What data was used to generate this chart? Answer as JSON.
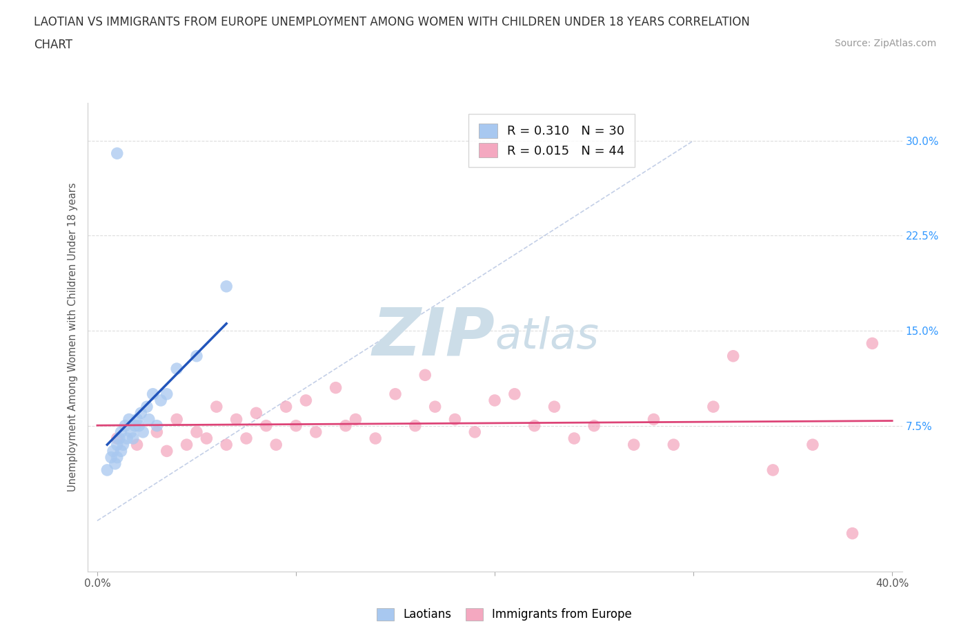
{
  "title_line1": "LAOTIAN VS IMMIGRANTS FROM EUROPE UNEMPLOYMENT AMONG WOMEN WITH CHILDREN UNDER 18 YEARS CORRELATION",
  "title_line2": "CHART",
  "source_text": "Source: ZipAtlas.com",
  "ylabel": "Unemployment Among Women with Children Under 18 years",
  "xlim": [
    -0.005,
    0.405
  ],
  "ylim": [
    -0.04,
    0.33
  ],
  "ytick_positions": [
    0.075,
    0.15,
    0.225,
    0.3
  ],
  "ytick_labels": [
    "7.5%",
    "15.0%",
    "22.5%",
    "30.0%"
  ],
  "r_laotian": 0.31,
  "n_laotian": 30,
  "r_europe": 0.015,
  "n_europe": 44,
  "laotian_color": "#a8c8f0",
  "europe_color": "#f4a8c0",
  "laotian_line_color": "#2255bb",
  "europe_line_color": "#dd4477",
  "watermark_color": "#ccdde8",
  "background_color": "#ffffff",
  "grid_color": "#dddddd",
  "legend_label_1": "Laotians",
  "legend_label_2": "Immigrants from Europe",
  "laotian_x": [
    0.005,
    0.007,
    0.008,
    0.009,
    0.01,
    0.01,
    0.011,
    0.012,
    0.012,
    0.013,
    0.014,
    0.015,
    0.016,
    0.017,
    0.018,
    0.019,
    0.02,
    0.021,
    0.022,
    0.023,
    0.025,
    0.026,
    0.028,
    0.03,
    0.032,
    0.035,
    0.04,
    0.05,
    0.065,
    0.01
  ],
  "laotian_y": [
    0.04,
    0.05,
    0.055,
    0.045,
    0.05,
    0.06,
    0.065,
    0.055,
    0.07,
    0.06,
    0.075,
    0.065,
    0.08,
    0.07,
    0.065,
    0.075,
    0.08,
    0.075,
    0.085,
    0.07,
    0.09,
    0.08,
    0.1,
    0.075,
    0.095,
    0.1,
    0.12,
    0.13,
    0.185,
    0.29
  ],
  "europe_x": [
    0.01,
    0.02,
    0.03,
    0.035,
    0.04,
    0.045,
    0.05,
    0.055,
    0.06,
    0.065,
    0.07,
    0.075,
    0.08,
    0.085,
    0.09,
    0.095,
    0.1,
    0.105,
    0.11,
    0.12,
    0.125,
    0.13,
    0.14,
    0.15,
    0.16,
    0.165,
    0.17,
    0.18,
    0.19,
    0.2,
    0.21,
    0.22,
    0.23,
    0.24,
    0.25,
    0.27,
    0.28,
    0.29,
    0.31,
    0.32,
    0.34,
    0.36,
    0.38,
    0.39
  ],
  "europe_y": [
    0.065,
    0.06,
    0.07,
    0.055,
    0.08,
    0.06,
    0.07,
    0.065,
    0.09,
    0.06,
    0.08,
    0.065,
    0.085,
    0.075,
    0.06,
    0.09,
    0.075,
    0.095,
    0.07,
    0.105,
    0.075,
    0.08,
    0.065,
    0.1,
    0.075,
    0.115,
    0.09,
    0.08,
    0.07,
    0.095,
    0.1,
    0.075,
    0.09,
    0.065,
    0.075,
    0.06,
    0.08,
    0.06,
    0.09,
    0.13,
    0.04,
    0.06,
    -0.01,
    0.14
  ],
  "point_size": 160
}
